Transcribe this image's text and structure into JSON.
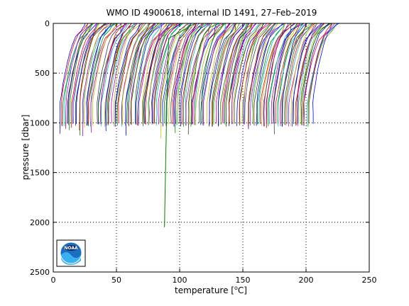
{
  "chart_data": {
    "type": "line",
    "title": "WMO ID 4900618, internal ID 1491, 27–Feb–2019",
    "xlabel_prefix": "temperature [",
    "xlabel_sup": "o",
    "xlabel_suffix": "C]",
    "ylabel": "pressure [dbar]",
    "xlim": [
      0,
      250
    ],
    "ylim": [
      0,
      2500
    ],
    "y_reversed": true,
    "grid": true,
    "xticks": [
      0,
      50,
      100,
      150,
      200,
      250
    ],
    "yticks": [
      0,
      500,
      1000,
      1500,
      2000,
      2500
    ],
    "series_description": "Approximately 200 temperature profiles, each offset horizontally; most extend from the surface to about 1000-1150 dbar, one profile extends to about 2050 dbar near x = 88-92.",
    "profile_offset_range": [
      5,
      205
    ],
    "profile_count": 190,
    "profile_depths": {
      "typical_bottom_dbar": 1000,
      "max_bottom_dbar": 1160
    },
    "deep_profile": {
      "x_top": 92,
      "x_bottom": 88,
      "bottom_dbar": 2050
    },
    "colors": [
      "#0000ff",
      "#008000",
      "#ff0000",
      "#00bfbf",
      "#bf00bf",
      "#bfbf00",
      "#404040"
    ]
  },
  "logo": {
    "text": "NOAA"
  }
}
